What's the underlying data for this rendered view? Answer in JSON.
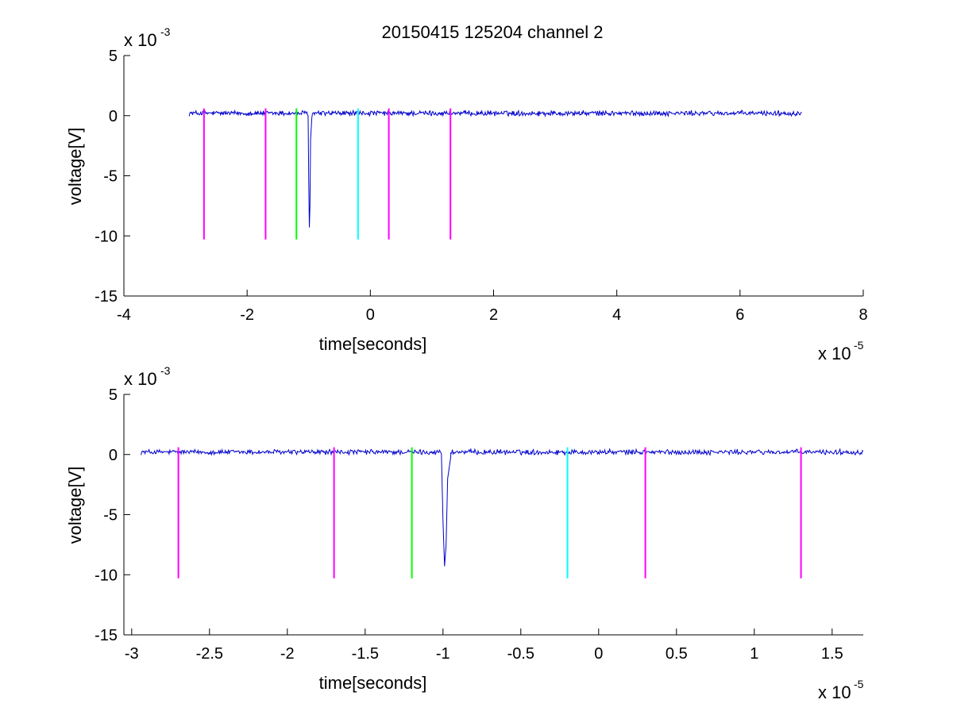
{
  "figure_title": "20150415 125204 channel 2",
  "chart_data": [
    {
      "type": "line",
      "title": "20150415 125204 channel 2",
      "xlabel": "time[seconds]",
      "ylabel": "voltage[V]",
      "x_multiplier": "x 10",
      "x_exponent": "-5",
      "y_multiplier": "x 10",
      "y_exponent": "-3",
      "xlim": [
        -4e-05,
        8e-05
      ],
      "ylim": [
        -0.015,
        0.005
      ],
      "xticks": [
        -4e-05,
        -2e-05,
        0,
        2e-05,
        4e-05,
        6e-05,
        8e-05
      ],
      "xtick_labels": [
        "-4",
        "-2",
        "0",
        "2",
        "4",
        "6",
        "8"
      ],
      "yticks": [
        0.005,
        0,
        -0.005,
        -0.01,
        -0.015
      ],
      "ytick_labels": [
        "5",
        "0",
        "-5",
        "-10",
        "-15"
      ],
      "grid": false,
      "series": [
        {
          "color": "#0000cc",
          "x_start": -2.94e-05,
          "x_end": 7e-05,
          "baseline": 0.0002,
          "noise": 0.00018,
          "dip": [
            {
              "x": -1.01e-05,
              "y": 0.0
            },
            {
              "x": -1e-05,
              "y": -0.0055
            },
            {
              "x": -9.9e-06,
              "y": -0.0093
            },
            {
              "x": -9.8e-06,
              "y": -0.0075
            },
            {
              "x": -9.7e-06,
              "y": -0.002
            },
            {
              "x": -9.5e-06,
              "y": -0.0002
            }
          ]
        }
      ],
      "markers": [
        {
          "x": -2.7e-05,
          "color": "#ff00ff",
          "y_top": 0.0006,
          "y_bottom": -0.0103
        },
        {
          "x": -1.7e-05,
          "color": "#ff00ff",
          "y_top": 0.0006,
          "y_bottom": -0.0103
        },
        {
          "x": -1.2e-05,
          "color": "#00ff00",
          "y_top": 0.0006,
          "y_bottom": -0.0103
        },
        {
          "x": -2e-06,
          "color": "#00ffff",
          "y_top": 0.0006,
          "y_bottom": -0.0103
        },
        {
          "x": 3e-06,
          "color": "#ff00ff",
          "y_top": 0.0006,
          "y_bottom": -0.0103
        },
        {
          "x": 1.3e-05,
          "color": "#ff00ff",
          "y_top": 0.0006,
          "y_bottom": -0.0103
        }
      ]
    },
    {
      "type": "line",
      "title": "",
      "xlabel": "time[seconds]",
      "ylabel": "voltage[V]",
      "x_multiplier": "x 10",
      "x_exponent": "-5",
      "y_multiplier": "x 10",
      "y_exponent": "-3",
      "xlim": [
        -3.05e-05,
        1.7e-05
      ],
      "ylim": [
        -0.015,
        0.005
      ],
      "xticks": [
        -3e-05,
        -2.5e-05,
        -2e-05,
        -1.5e-05,
        -1e-05,
        -5e-06,
        0,
        5e-06,
        1e-05,
        1.5e-05
      ],
      "xtick_labels": [
        "-3",
        "-2.5",
        "-2",
        "-1.5",
        "-1",
        "-0.5",
        "0",
        "0.5",
        "1",
        "1.5"
      ],
      "yticks": [
        0.005,
        0,
        -0.005,
        -0.01,
        -0.015
      ],
      "ytick_labels": [
        "5",
        "0",
        "-5",
        "-10",
        "-15"
      ],
      "grid": false,
      "series": [
        {
          "color": "#0000cc",
          "x_start": -2.94e-05,
          "x_end": 1.7e-05,
          "baseline": 0.0002,
          "noise": 0.00018,
          "dip": [
            {
              "x": -1.01e-05,
              "y": 0.0
            },
            {
              "x": -1e-05,
              "y": -0.0055
            },
            {
              "x": -9.9e-06,
              "y": -0.0093
            },
            {
              "x": -9.8e-06,
              "y": -0.0075
            },
            {
              "x": -9.7e-06,
              "y": -0.002
            },
            {
              "x": -9.5e-06,
              "y": -0.0002
            }
          ]
        }
      ],
      "markers": [
        {
          "x": -2.7e-05,
          "color": "#ff00ff",
          "y_top": 0.0006,
          "y_bottom": -0.0103
        },
        {
          "x": -1.7e-05,
          "color": "#ff00ff",
          "y_top": 0.0006,
          "y_bottom": -0.0103
        },
        {
          "x": -1.2e-05,
          "color": "#00ff00",
          "y_top": 0.0006,
          "y_bottom": -0.0103
        },
        {
          "x": -2e-06,
          "color": "#00ffff",
          "y_top": 0.0006,
          "y_bottom": -0.0103
        },
        {
          "x": 3e-06,
          "color": "#ff00ff",
          "y_top": 0.0006,
          "y_bottom": -0.0103
        },
        {
          "x": 1.3e-05,
          "color": "#ff00ff",
          "y_top": 0.0006,
          "y_bottom": -0.0103
        }
      ]
    }
  ]
}
